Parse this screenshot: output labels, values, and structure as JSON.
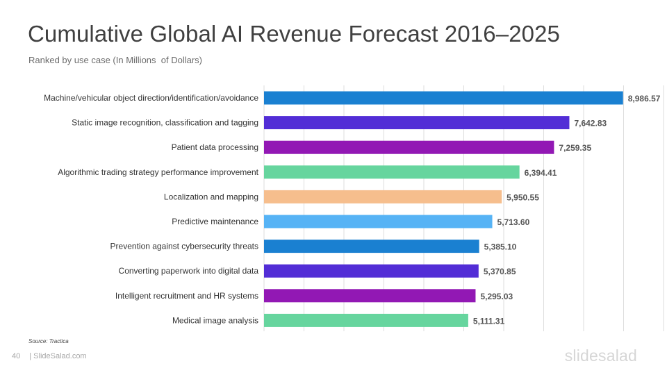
{
  "title": "Cumulative Global AI Revenue Forecast 2016–2025",
  "subtitle": "Ranked by use case (In Millions  of Dollars)",
  "source": "Source: Tractica",
  "footer": {
    "page_number": "40",
    "site": "| SlideSalad.com",
    "brand": "slidesalad"
  },
  "chart_data": {
    "type": "bar",
    "orientation": "horizontal",
    "categories": [
      "Machine/vehicular object direction/identification/avoidance",
      "Static image recognition, classification and tagging",
      "Patient data processing",
      "Algorithmic trading strategy performance improvement",
      "Localization and mapping",
      "Predictive maintenance",
      "Prevention against cybersecurity threats",
      "Converting paperwork into digital data",
      "Intelligent recruitment and HR systems",
      "Medical image analysis"
    ],
    "values": [
      8986.57,
      7642.83,
      7259.35,
      6394.41,
      5950.55,
      5713.6,
      5385.1,
      5370.85,
      5295.03,
      5111.31
    ],
    "value_labels": [
      "8,986.57",
      "7,642.83",
      "7,259.35",
      "6,394.41",
      "5,950.55",
      "5,713.60",
      "5,385.10",
      "5,370.85",
      "5,295.03",
      "5,111.31"
    ],
    "colors": [
      "#1a80d1",
      "#522dd6",
      "#9218b4",
      "#66d59e",
      "#f6be8d",
      "#56b3f5",
      "#1a80d1",
      "#522dd6",
      "#9218b4",
      "#66d59e"
    ],
    "xlim": [
      0,
      10000
    ],
    "grid": true,
    "gridline_color": "#dddddd",
    "label_color": "#333333",
    "value_label_color": "#555555"
  }
}
